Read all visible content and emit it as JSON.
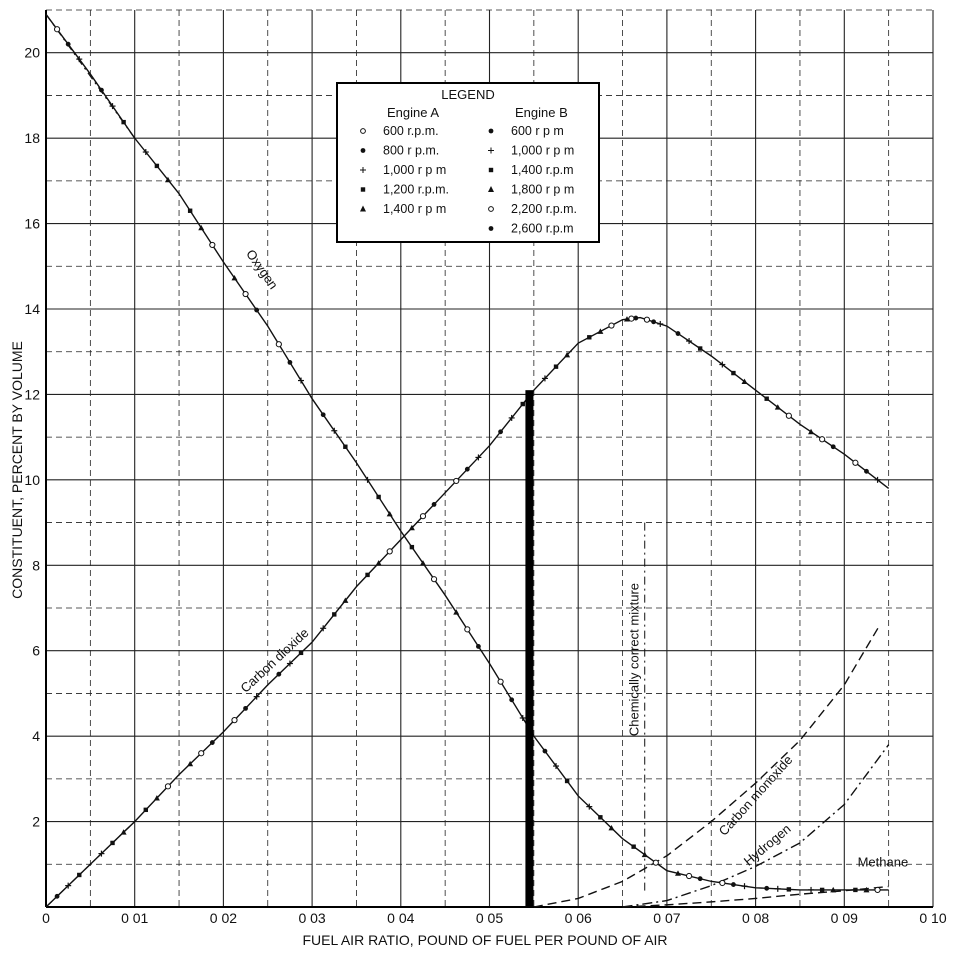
{
  "chart_data": {
    "type": "line",
    "title": "",
    "xlabel": "FUEL  AIR RATIO, POUND OF FUEL PER POUND OF AIR",
    "ylabel": "CONSTITUENT, PERCENT BY VOLUME",
    "xlim": [
      0,
      0.1
    ],
    "ylim": [
      0,
      21
    ],
    "grid": true,
    "x_ticks": [
      0,
      0.01,
      0.02,
      0.03,
      0.04,
      0.05,
      0.06,
      0.07,
      0.08,
      0.09,
      0.1
    ],
    "x_tick_labels": [
      "0",
      "0 01",
      "0 02",
      "0 03",
      "0 04",
      "0 05",
      "0 06",
      "0 07",
      "0 08",
      "0 09",
      "0 10"
    ],
    "y_ticks": [
      2,
      4,
      6,
      8,
      10,
      12,
      14,
      16,
      18,
      20
    ],
    "y_tick_labels": [
      "2",
      "4",
      "6",
      "8",
      "10",
      "12",
      "14",
      "16",
      "18",
      "20"
    ],
    "series": [
      {
        "name": "Oxygen",
        "style": "solid",
        "x": [
          0,
          0.005,
          0.01,
          0.015,
          0.02,
          0.025,
          0.03,
          0.035,
          0.04,
          0.045,
          0.05,
          0.055,
          0.06,
          0.065,
          0.07,
          0.075,
          0.08,
          0.085,
          0.09,
          0.095
        ],
        "y": [
          20.9,
          19.5,
          18.0,
          16.7,
          15.1,
          13.6,
          11.9,
          10.4,
          8.8,
          7.3,
          5.7,
          4.0,
          2.6,
          1.6,
          0.85,
          0.6,
          0.45,
          0.4,
          0.4,
          0.4
        ]
      },
      {
        "name": "Carbon dioxide",
        "style": "solid",
        "x": [
          0,
          0.005,
          0.01,
          0.015,
          0.02,
          0.025,
          0.03,
          0.035,
          0.04,
          0.045,
          0.05,
          0.055,
          0.06,
          0.065,
          0.067,
          0.07,
          0.075,
          0.08,
          0.085,
          0.09,
          0.095
        ],
        "y": [
          0,
          1.0,
          2.0,
          3.1,
          4.1,
          5.2,
          6.2,
          7.5,
          8.6,
          9.7,
          10.8,
          12.1,
          13.2,
          13.75,
          13.8,
          13.6,
          12.9,
          12.1,
          11.3,
          10.6,
          9.8
        ]
      },
      {
        "name": "Carbon monoxide",
        "style": "dashed",
        "x": [
          0.055,
          0.06,
          0.065,
          0.07,
          0.075,
          0.08,
          0.085,
          0.09,
          0.094
        ],
        "y": [
          0,
          0.2,
          0.6,
          1.2,
          2.0,
          2.9,
          3.9,
          5.2,
          6.6
        ]
      },
      {
        "name": "Hydrogen",
        "style": "dash-dot",
        "x": [
          0.065,
          0.07,
          0.075,
          0.08,
          0.085,
          0.09,
          0.095
        ],
        "y": [
          0,
          0.15,
          0.5,
          0.95,
          1.5,
          2.4,
          3.8
        ]
      },
      {
        "name": "Methane",
        "style": "dashed",
        "x": [
          0.065,
          0.07,
          0.075,
          0.08,
          0.085,
          0.09,
          0.095
        ],
        "y": [
          0,
          0.05,
          0.12,
          0.2,
          0.3,
          0.38,
          0.48
        ]
      }
    ],
    "annotations": [
      {
        "text": "Chemically correct mixture",
        "x": 0.0545
      }
    ],
    "legend": {
      "title": "LEGEND",
      "position": "top-center",
      "groups": [
        {
          "name": "Engine A",
          "entries": [
            "600 r.p.m.",
            "800 r p.m.",
            "1,000 r p m",
            "1,200 r.p.m.",
            "1,400 r p m"
          ]
        },
        {
          "name": "Engine B",
          "entries": [
            "600 r p m",
            "1,000 r p m",
            "1,400 r.p.m",
            "1,800 r p m",
            "2,200 r.p.m.",
            "2,600 r.p.m"
          ]
        }
      ]
    }
  }
}
